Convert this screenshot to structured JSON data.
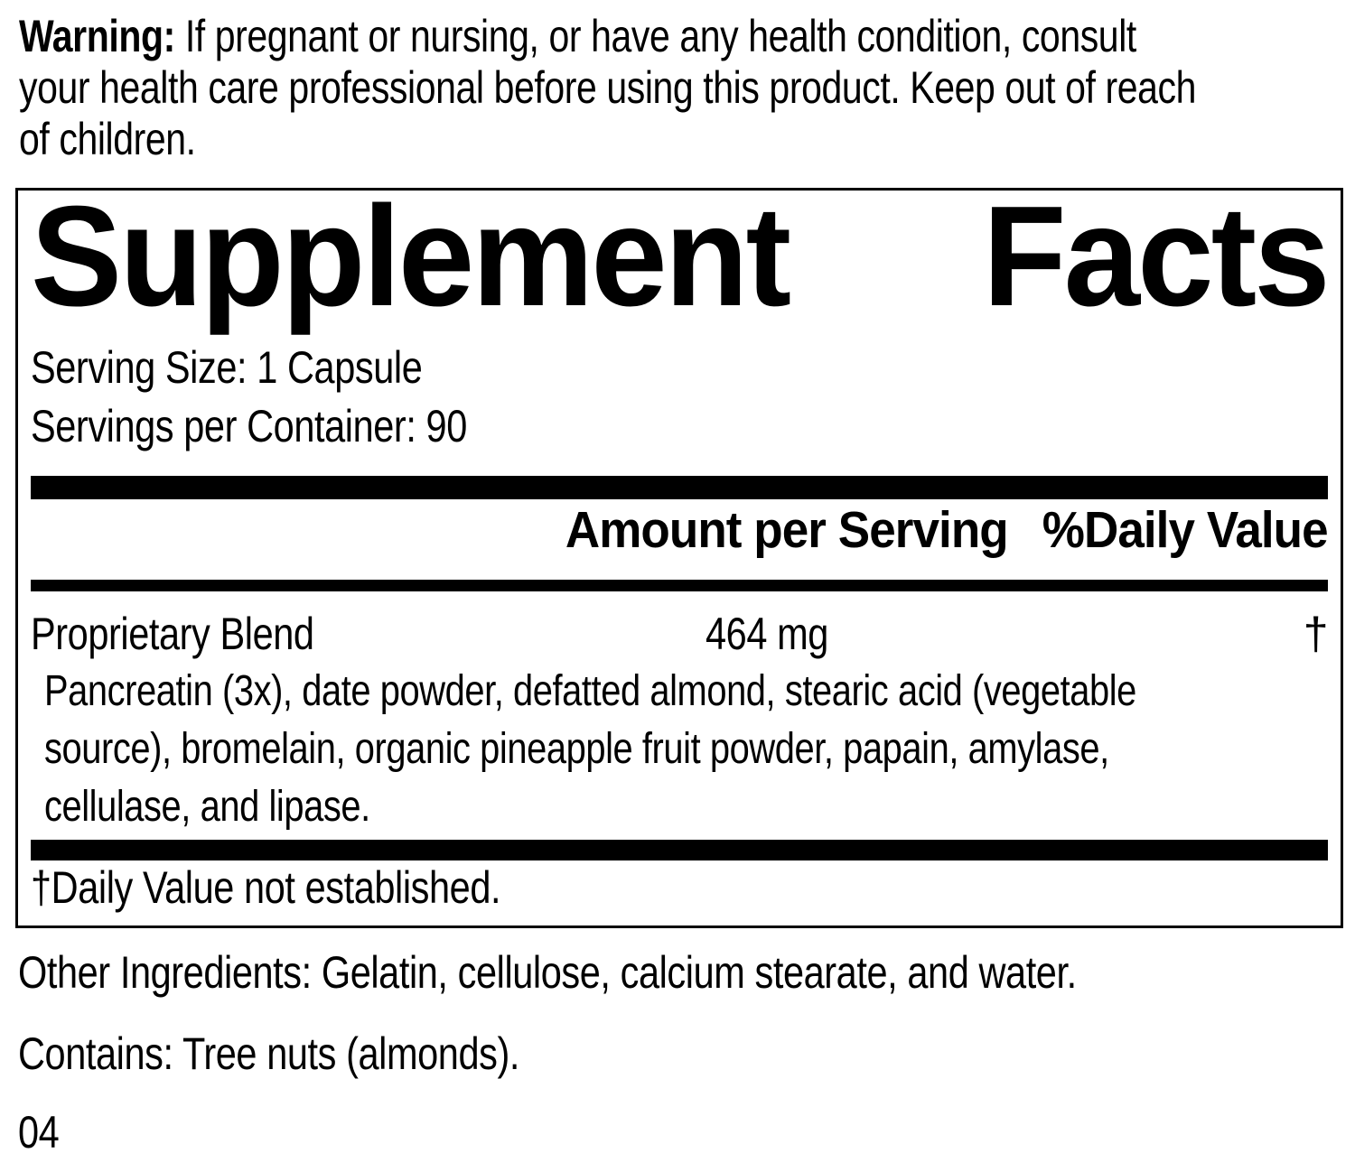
{
  "warning": {
    "label": "Warning:",
    "line1_rest": " If pregnant or nursing, or have any health condition, consult",
    "line2": "your health care professional before using this product. Keep out of reach",
    "line3": "of children."
  },
  "panel": {
    "title_word1": "Supplement",
    "title_word2": "Facts",
    "serving_size": "Serving Size: 1 Capsule",
    "servings_per_container": "Servings per Container: 90",
    "columns": {
      "amount": "Amount per Serving",
      "daily_value": "%Daily Value"
    },
    "blend": {
      "name": "Proprietary Blend",
      "amount": "464 mg",
      "daily_value": "†",
      "desc_line1": "Pancreatin (3x), date powder, defatted almond, stearic acid (vegetable",
      "desc_line2": "source), bromelain, organic pineapple fruit powder, papain, amylase,",
      "desc_line3": "cellulase, and lipase."
    },
    "footnote": "†Daily Value not established."
  },
  "other_ingredients": "Other Ingredients: Gelatin, cellulose, calcium stearate, and water.",
  "contains": "Contains: Tree nuts (almonds).",
  "code": "04",
  "colors": {
    "text": "#000000",
    "background": "#ffffff",
    "rule": "#000000"
  }
}
